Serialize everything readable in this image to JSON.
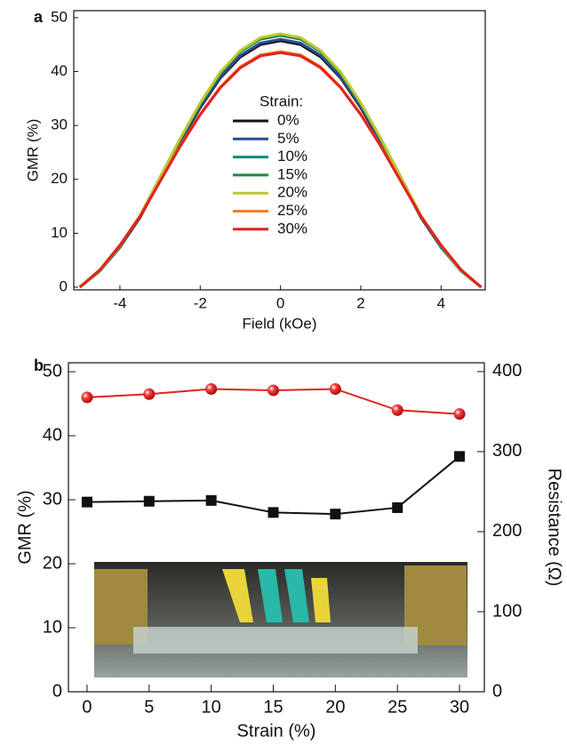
{
  "chart_data": [
    {
      "type": "line",
      "panel_label": "a",
      "xlabel": "Field (kOe)",
      "ylabel": "GMR (%)",
      "legend_title": "Strain:",
      "x": [
        -5,
        -4.5,
        -4,
        -3.5,
        -3,
        -2.5,
        -2,
        -1.5,
        -1,
        -0.5,
        0,
        0.5,
        1,
        1.5,
        2,
        2.5,
        3,
        3.5,
        4,
        4.5,
        5
      ],
      "xlim": [
        -5.15,
        5.1
      ],
      "xticks": [
        -4,
        -2,
        0,
        2,
        4
      ],
      "ylim": [
        -0.5,
        51.3
      ],
      "yticks": [
        0,
        10,
        20,
        30,
        40,
        50
      ],
      "series": [
        {
          "name": "0%",
          "color": "#111111",
          "values": [
            0,
            3.0,
            7.4,
            12.9,
            19.9,
            26.8,
            33.3,
            38.8,
            42.7,
            45.0,
            45.7,
            45.0,
            42.7,
            38.8,
            33.3,
            26.8,
            19.9,
            12.9,
            7.4,
            3.0,
            0
          ]
        },
        {
          "name": "5%",
          "color": "#2b4b9b",
          "values": [
            0,
            3.0,
            7.5,
            13.0,
            20.0,
            27.0,
            33.5,
            39.0,
            43.0,
            45.3,
            46,
            45.3,
            43.0,
            39.0,
            33.5,
            27.0,
            20.0,
            13.0,
            7.5,
            3.0,
            0
          ]
        },
        {
          "name": "10%",
          "color": "#0e8a7c",
          "values": [
            0,
            3.0,
            7.6,
            13.2,
            20.4,
            27.5,
            34.1,
            39.7,
            43.8,
            46.1,
            46.8,
            46.1,
            43.8,
            39.7,
            34.1,
            27.5,
            20.4,
            13.2,
            7.6,
            3.0,
            0
          ]
        },
        {
          "name": "15%",
          "color": "#1c8c3c",
          "values": [
            0,
            3.0,
            7.6,
            13.2,
            20.3,
            27.4,
            34.0,
            39.6,
            43.7,
            46.0,
            46.7,
            46.0,
            43.7,
            39.6,
            34.0,
            27.4,
            20.3,
            13.2,
            7.6,
            3.0,
            0
          ]
        },
        {
          "name": "20%",
          "color": "#bcc832",
          "values": [
            0,
            3.1,
            7.7,
            13.3,
            20.4,
            27.6,
            34.2,
            39.9,
            43.9,
            46.3,
            47,
            46.3,
            43.9,
            39.9,
            34.2,
            27.6,
            20.4,
            13.3,
            7.7,
            3.1,
            0
          ]
        },
        {
          "name": "25%",
          "color": "#f08222",
          "values": [
            0,
            3.2,
            7.8,
            13.2,
            19.7,
            26.2,
            32.1,
            37.1,
            40.9,
            43.1,
            43.7,
            43.1,
            40.9,
            37.1,
            32.1,
            26.2,
            19.7,
            13.2,
            7.8,
            3.2,
            0
          ]
        },
        {
          "name": "30%",
          "color": "#e3211f",
          "values": [
            0,
            3.2,
            7.8,
            13.1,
            19.6,
            26.1,
            32.0,
            37.0,
            40.7,
            42.9,
            43.5,
            42.9,
            40.7,
            37.0,
            32.0,
            26.1,
            19.6,
            13.1,
            7.8,
            3.2,
            0
          ]
        }
      ]
    },
    {
      "type": "line",
      "panel_label": "b",
      "xlabel": "Strain (%)",
      "ylabel": "GMR (%)",
      "y2label": "Resistance (Ω)",
      "x": [
        0,
        5,
        10,
        15,
        20,
        25,
        30
      ],
      "xlim": [
        -1.5,
        32
      ],
      "xticks": [
        0,
        5,
        10,
        15,
        20,
        25,
        30
      ],
      "ylim": [
        0,
        51.4
      ],
      "yticks": [
        0,
        10,
        20,
        30,
        40,
        50
      ],
      "y2lim": [
        0,
        411
      ],
      "y2ticks": [
        0,
        100,
        200,
        300,
        400
      ],
      "series": [
        {
          "color": "#e3211f",
          "marker": "circle",
          "values": [
            46,
            46.5,
            47.3,
            47.1,
            47.3,
            44,
            43.4
          ]
        },
        {
          "color": "#111111",
          "marker": "square",
          "axis": "y2",
          "values": [
            237,
            238,
            239,
            224,
            222,
            230,
            294
          ]
        }
      ]
    }
  ]
}
